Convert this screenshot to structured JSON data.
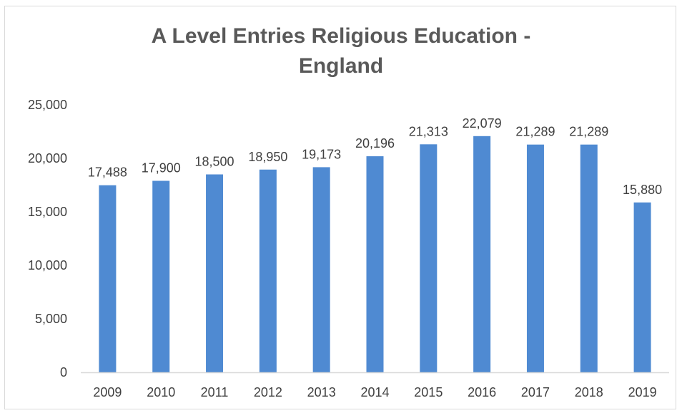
{
  "chart_data": {
    "type": "bar",
    "title_lines": [
      "A Level Entries Religious Education -",
      "England"
    ],
    "categories": [
      "2009",
      "2010",
      "2011",
      "2012",
      "2013",
      "2014",
      "2015",
      "2016",
      "2017",
      "2018",
      "2019"
    ],
    "values": [
      17488,
      17900,
      18500,
      18950,
      19173,
      20196,
      21313,
      22079,
      21289,
      21289,
      15880
    ],
    "value_labels": [
      "17,488",
      "17,900",
      "18,500",
      "18,950",
      "19,173",
      "20,196",
      "21,313",
      "22,079",
      "21,289",
      "21,289",
      "15,880"
    ],
    "y_ticks": [
      0,
      5000,
      10000,
      15000,
      20000,
      25000
    ],
    "y_tick_labels": [
      "0",
      "5,000",
      "10,000",
      "15,000",
      "20,000",
      "25,000"
    ],
    "ylim": [
      0,
      25000
    ],
    "xlabel": "",
    "ylabel": "",
    "grid": false,
    "legend": "none",
    "colors": {
      "bar": "#4f8ad2",
      "axis": "#d9d9d9",
      "text": "#404040",
      "title": "#595959"
    }
  }
}
